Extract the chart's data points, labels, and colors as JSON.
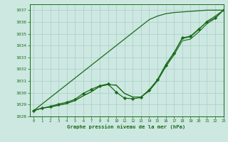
{
  "title": "Graphe pression niveau de la mer (hPa)",
  "xlim": [
    -0.5,
    23
  ],
  "ylim": [
    1028,
    1037.5
  ],
  "yticks": [
    1028,
    1029,
    1030,
    1031,
    1032,
    1033,
    1034,
    1035,
    1036,
    1037
  ],
  "xticks": [
    0,
    1,
    2,
    3,
    4,
    5,
    6,
    7,
    8,
    9,
    10,
    11,
    12,
    13,
    14,
    15,
    16,
    17,
    18,
    19,
    20,
    21,
    22,
    23
  ],
  "bg_color": "#cce8e0",
  "grid_color": "#aacccc",
  "line_color": "#1a6b1a",
  "line_straight": [
    1028.5,
    1029.05,
    1029.6,
    1030.15,
    1030.7,
    1031.25,
    1031.8,
    1032.35,
    1032.9,
    1033.45,
    1034.0,
    1034.55,
    1035.1,
    1035.65,
    1036.2,
    1036.5,
    1036.7,
    1036.8,
    1036.85,
    1036.9,
    1036.95,
    1037.0,
    1037.0,
    1037.0
  ],
  "line2": [
    1028.5,
    1028.7,
    1028.8,
    1028.95,
    1029.1,
    1029.35,
    1029.75,
    1030.1,
    1030.55,
    1030.7,
    1030.65,
    1029.95,
    1029.65,
    1029.65,
    1030.15,
    1031.0,
    1032.2,
    1033.2,
    1034.4,
    1034.55,
    1035.15,
    1035.85,
    1036.3,
    1037.0
  ],
  "line3": [
    1028.5,
    1028.7,
    1028.8,
    1028.95,
    1029.1,
    1029.35,
    1029.75,
    1030.1,
    1030.55,
    1030.7,
    1030.65,
    1029.95,
    1029.65,
    1029.65,
    1030.25,
    1031.1,
    1032.4,
    1033.4,
    1034.6,
    1034.75,
    1035.35,
    1036.05,
    1036.5,
    1037.0
  ],
  "line_markers": [
    1028.5,
    1028.7,
    1028.85,
    1029.05,
    1029.2,
    1029.45,
    1029.95,
    1030.3,
    1030.6,
    1030.75,
    1030.05,
    1029.55,
    1029.5,
    1029.6,
    1030.25,
    1031.1,
    1032.3,
    1033.35,
    1034.65,
    1034.8,
    1035.4,
    1036.0,
    1036.35,
    1037.0
  ]
}
